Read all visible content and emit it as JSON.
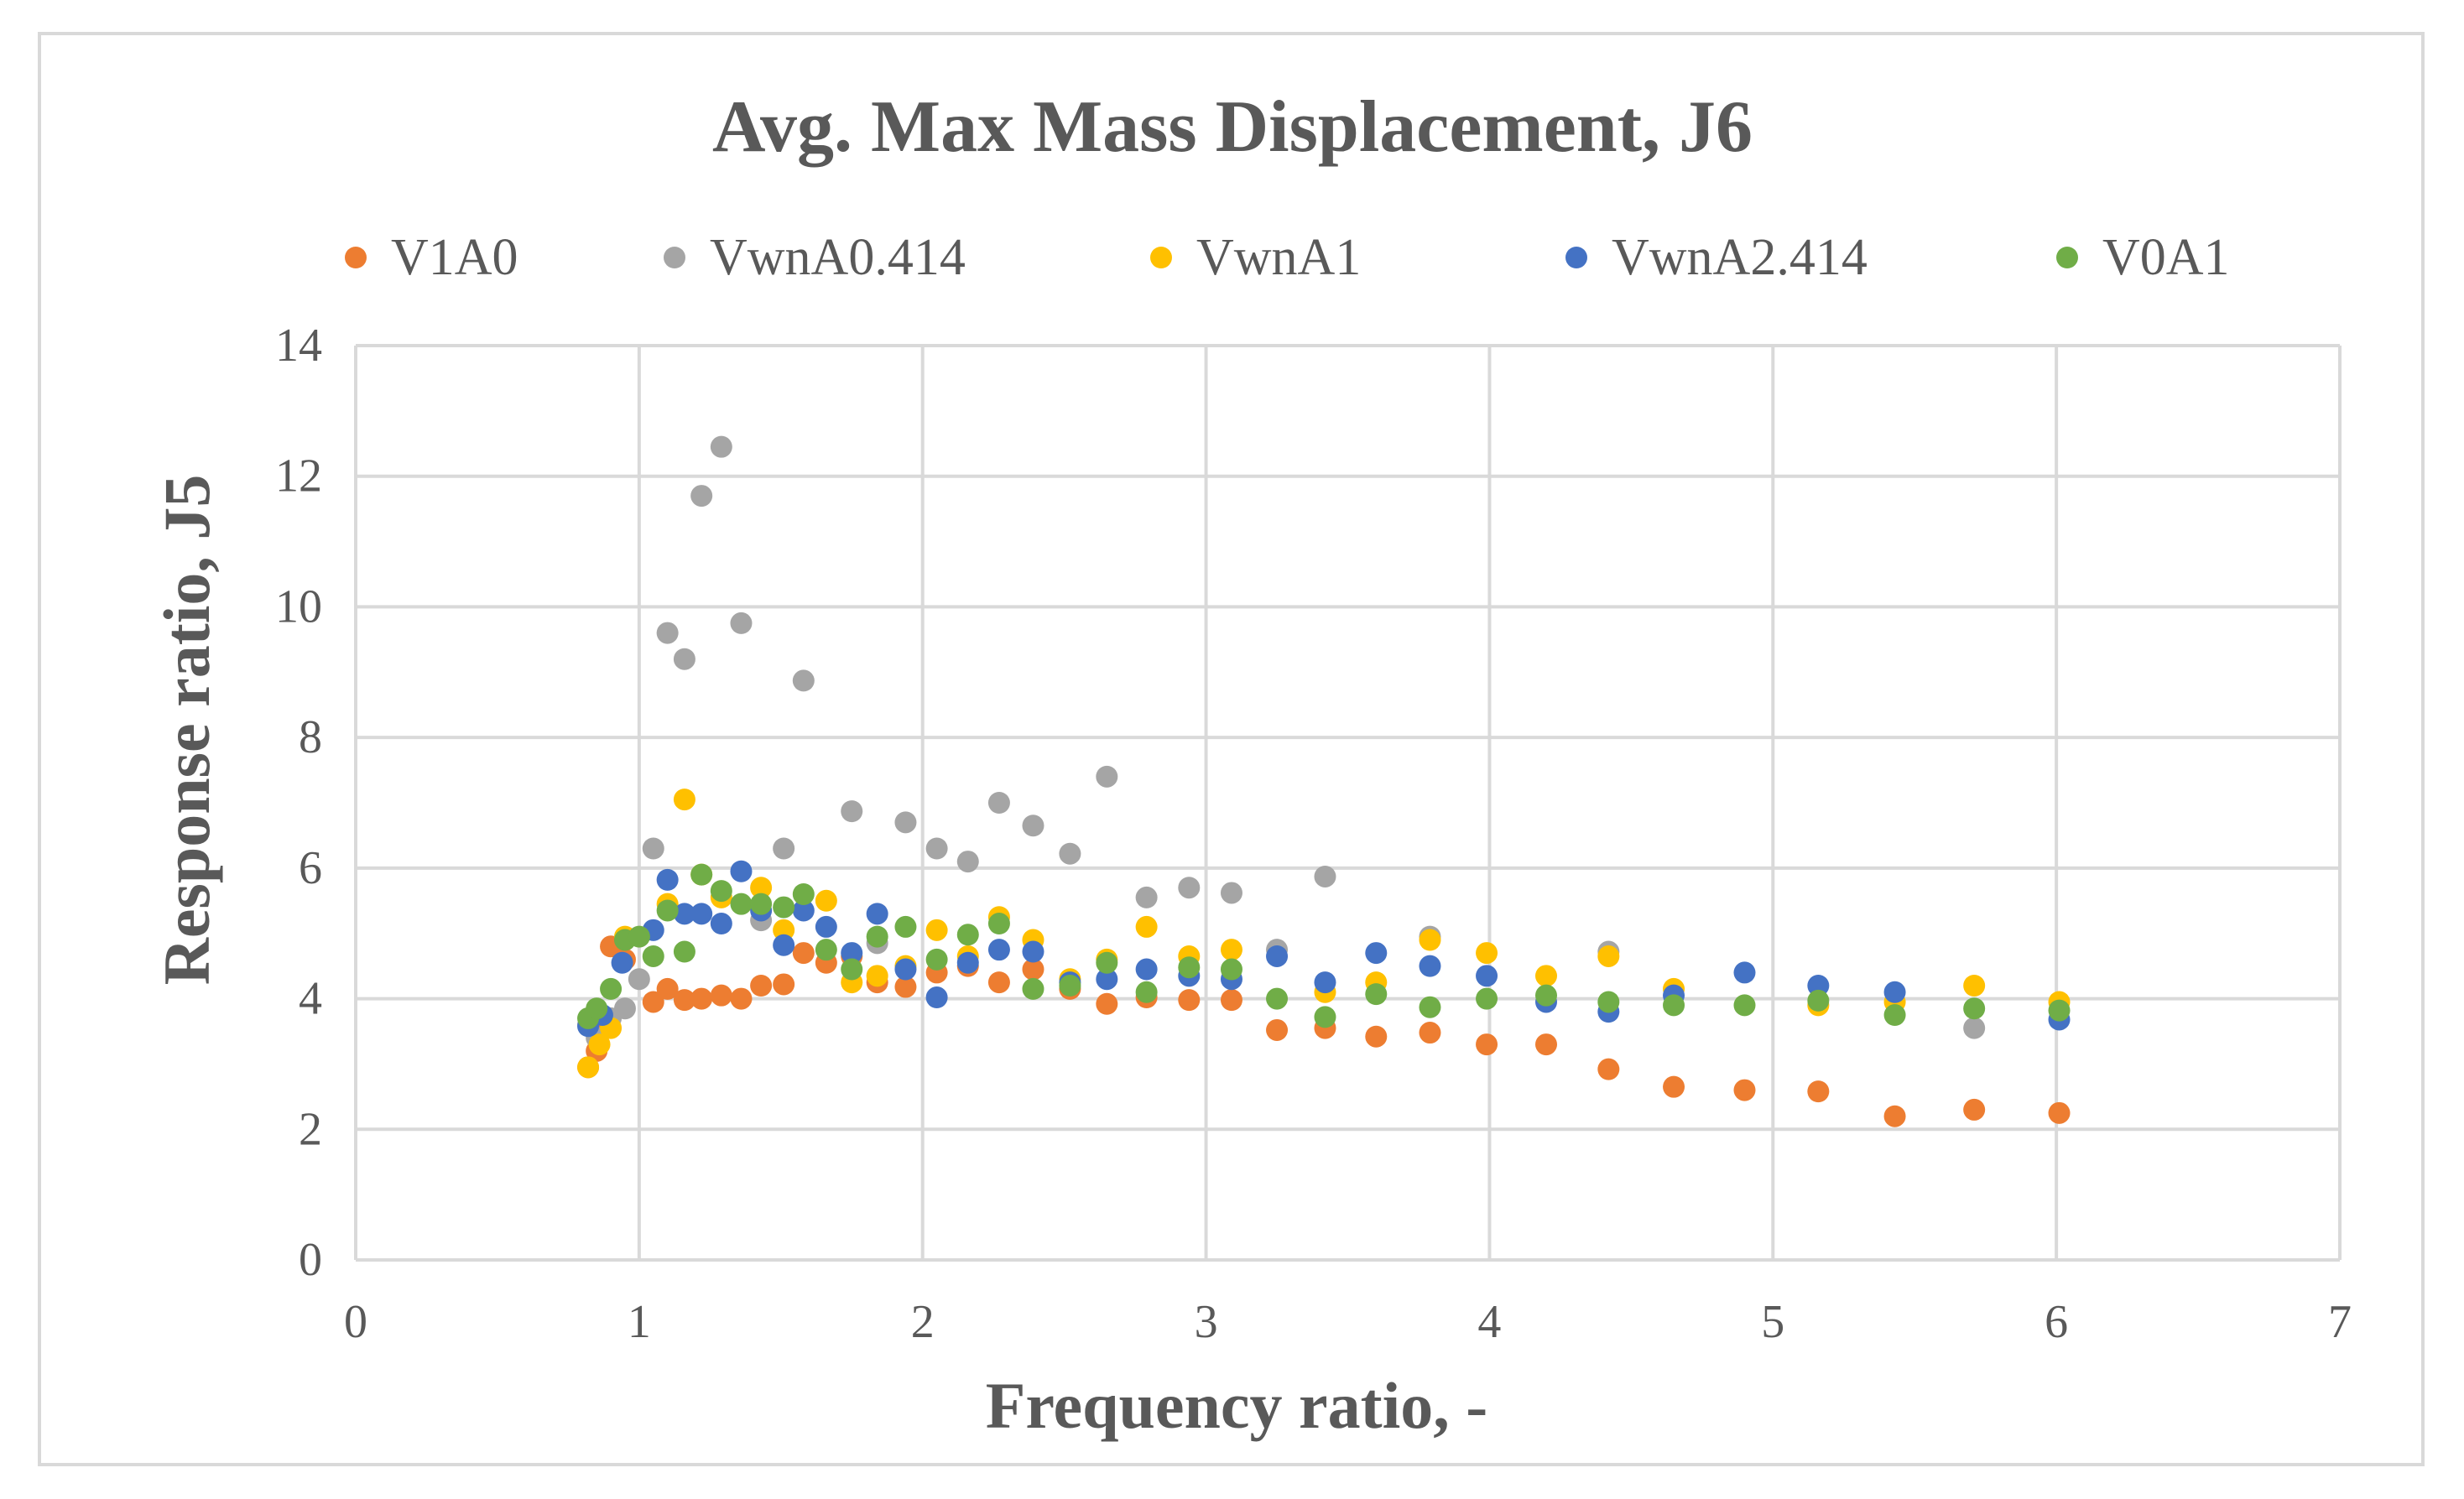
{
  "chart_data": {
    "type": "scatter",
    "title": "Avg. Max Mass Displacement, J6",
    "xlabel": "Frequency ratio, -",
    "ylabel": "Response ratio, J5",
    "xlim": [
      0,
      7
    ],
    "ylim": [
      0,
      14
    ],
    "xticks": [
      "0",
      "1",
      "2",
      "3",
      "4",
      "5",
      "6",
      "7"
    ],
    "yticks": [
      "0",
      "2",
      "4",
      "6",
      "8",
      "10",
      "12",
      "14"
    ],
    "grid": true,
    "legend_position": "top",
    "series": [
      {
        "name": "V1A0",
        "color": "#ed7d31",
        "points": [
          [
            0.82,
            2.95
          ],
          [
            0.85,
            3.2
          ],
          [
            0.88,
            3.7
          ],
          [
            0.9,
            4.8
          ],
          [
            0.95,
            4.6
          ],
          [
            1.05,
            3.95
          ],
          [
            1.1,
            4.15
          ],
          [
            1.16,
            3.98
          ],
          [
            1.22,
            4.0
          ],
          [
            1.29,
            4.05
          ],
          [
            1.36,
            4.0
          ],
          [
            1.43,
            4.2
          ],
          [
            1.51,
            4.22
          ],
          [
            1.58,
            4.7
          ],
          [
            1.66,
            4.55
          ],
          [
            1.75,
            4.65
          ],
          [
            1.84,
            4.25
          ],
          [
            1.94,
            4.18
          ],
          [
            2.05,
            4.4
          ],
          [
            2.16,
            4.5
          ],
          [
            2.27,
            4.25
          ],
          [
            2.39,
            4.45
          ],
          [
            2.52,
            4.15
          ],
          [
            2.65,
            3.92
          ],
          [
            2.79,
            4.02
          ],
          [
            2.94,
            3.98
          ],
          [
            3.09,
            3.98
          ],
          [
            3.25,
            3.52
          ],
          [
            3.42,
            3.55
          ],
          [
            3.6,
            3.42
          ],
          [
            3.79,
            3.48
          ],
          [
            3.99,
            3.3
          ],
          [
            4.2,
            3.3
          ],
          [
            4.42,
            2.92
          ],
          [
            4.65,
            2.65
          ],
          [
            4.9,
            2.6
          ],
          [
            5.16,
            2.58
          ],
          [
            5.43,
            2.2
          ],
          [
            5.71,
            2.3
          ],
          [
            6.01,
            2.25
          ]
        ]
      },
      {
        "name": "VwnA0.414",
        "color": "#a5a5a5",
        "points": [
          [
            0.82,
            3.6
          ],
          [
            0.85,
            3.4
          ],
          [
            0.9,
            3.7
          ],
          [
            0.95,
            3.85
          ],
          [
            1.0,
            4.3
          ],
          [
            1.05,
            6.3
          ],
          [
            1.1,
            9.6
          ],
          [
            1.16,
            9.2
          ],
          [
            1.22,
            11.7
          ],
          [
            1.29,
            12.45
          ],
          [
            1.36,
            9.75
          ],
          [
            1.43,
            5.2
          ],
          [
            1.51,
            6.3
          ],
          [
            1.58,
            8.87
          ],
          [
            1.75,
            6.87
          ],
          [
            1.84,
            4.85
          ],
          [
            1.94,
            6.7
          ],
          [
            2.05,
            6.3
          ],
          [
            2.16,
            6.1
          ],
          [
            2.27,
            7.0
          ],
          [
            2.39,
            6.65
          ],
          [
            2.52,
            6.22
          ],
          [
            2.65,
            7.4
          ],
          [
            2.79,
            5.55
          ],
          [
            2.94,
            5.7
          ],
          [
            3.09,
            5.62
          ],
          [
            3.25,
            4.75
          ],
          [
            3.42,
            5.87
          ],
          [
            3.79,
            4.95
          ],
          [
            4.42,
            4.72
          ],
          [
            5.71,
            3.55
          ]
        ]
      },
      {
        "name": "VwnA1",
        "color": "#ffc000",
        "points": [
          [
            0.82,
            2.95
          ],
          [
            0.86,
            3.3
          ],
          [
            0.9,
            3.55
          ],
          [
            0.95,
            4.95
          ],
          [
            1.1,
            5.45
          ],
          [
            1.16,
            7.05
          ],
          [
            1.22,
            5.9
          ],
          [
            1.29,
            5.55
          ],
          [
            1.43,
            5.7
          ],
          [
            1.51,
            5.05
          ],
          [
            1.66,
            5.5
          ],
          [
            1.75,
            4.25
          ],
          [
            1.84,
            4.35
          ],
          [
            1.94,
            4.5
          ],
          [
            2.05,
            5.05
          ],
          [
            2.16,
            4.65
          ],
          [
            2.27,
            5.25
          ],
          [
            2.39,
            4.9
          ],
          [
            2.52,
            4.3
          ],
          [
            2.65,
            4.6
          ],
          [
            2.79,
            5.1
          ],
          [
            2.94,
            4.65
          ],
          [
            3.09,
            4.75
          ],
          [
            3.42,
            4.1
          ],
          [
            3.6,
            4.25
          ],
          [
            3.79,
            4.9
          ],
          [
            3.99,
            4.7
          ],
          [
            4.2,
            4.35
          ],
          [
            4.42,
            4.65
          ],
          [
            4.65,
            4.15
          ],
          [
            5.16,
            3.9
          ],
          [
            5.43,
            3.95
          ],
          [
            5.71,
            4.2
          ],
          [
            6.01,
            3.95
          ]
        ]
      },
      {
        "name": "VwnA2.414",
        "color": "#4472c4",
        "points": [
          [
            0.82,
            3.58
          ],
          [
            0.87,
            3.75
          ],
          [
            0.94,
            4.55
          ],
          [
            1.05,
            5.05
          ],
          [
            1.1,
            5.82
          ],
          [
            1.16,
            5.3
          ],
          [
            1.22,
            5.3
          ],
          [
            1.29,
            5.15
          ],
          [
            1.36,
            5.95
          ],
          [
            1.43,
            5.35
          ],
          [
            1.51,
            4.82
          ],
          [
            1.58,
            5.35
          ],
          [
            1.66,
            5.1
          ],
          [
            1.75,
            4.7
          ],
          [
            1.84,
            5.3
          ],
          [
            1.94,
            4.45
          ],
          [
            2.05,
            4.02
          ],
          [
            2.16,
            4.55
          ],
          [
            2.27,
            4.75
          ],
          [
            2.39,
            4.72
          ],
          [
            2.52,
            4.25
          ],
          [
            2.65,
            4.3
          ],
          [
            2.79,
            4.45
          ],
          [
            2.94,
            4.35
          ],
          [
            3.09,
            4.3
          ],
          [
            3.25,
            4.65
          ],
          [
            3.42,
            4.25
          ],
          [
            3.6,
            4.7
          ],
          [
            3.79,
            4.5
          ],
          [
            3.99,
            4.35
          ],
          [
            4.2,
            3.95
          ],
          [
            4.42,
            3.8
          ],
          [
            4.65,
            4.05
          ],
          [
            4.9,
            4.4
          ],
          [
            5.16,
            4.2
          ],
          [
            5.43,
            4.1
          ],
          [
            6.01,
            3.68
          ]
        ]
      },
      {
        "name": "V0A1",
        "color": "#70ad47",
        "points": [
          [
            0.82,
            3.7
          ],
          [
            0.85,
            3.85
          ],
          [
            0.9,
            4.15
          ],
          [
            0.95,
            4.9
          ],
          [
            1.0,
            4.95
          ],
          [
            1.05,
            4.65
          ],
          [
            1.1,
            5.35
          ],
          [
            1.16,
            4.72
          ],
          [
            1.22,
            5.9
          ],
          [
            1.29,
            5.65
          ],
          [
            1.36,
            5.45
          ],
          [
            1.43,
            5.45
          ],
          [
            1.51,
            5.4
          ],
          [
            1.58,
            5.6
          ],
          [
            1.66,
            4.75
          ],
          [
            1.75,
            4.45
          ],
          [
            1.84,
            4.95
          ],
          [
            1.94,
            5.1
          ],
          [
            2.05,
            4.6
          ],
          [
            2.16,
            4.98
          ],
          [
            2.27,
            5.15
          ],
          [
            2.39,
            4.15
          ],
          [
            2.52,
            4.2
          ],
          [
            2.65,
            4.55
          ],
          [
            2.79,
            4.1
          ],
          [
            2.94,
            4.48
          ],
          [
            3.09,
            4.45
          ],
          [
            3.25,
            4.0
          ],
          [
            3.42,
            3.72
          ],
          [
            3.6,
            4.07
          ],
          [
            3.79,
            3.87
          ],
          [
            3.99,
            4.0
          ],
          [
            4.2,
            4.05
          ],
          [
            4.42,
            3.95
          ],
          [
            4.65,
            3.9
          ],
          [
            4.9,
            3.9
          ],
          [
            5.16,
            3.97
          ],
          [
            5.43,
            3.75
          ],
          [
            5.71,
            3.85
          ],
          [
            6.01,
            3.82
          ]
        ]
      }
    ]
  }
}
